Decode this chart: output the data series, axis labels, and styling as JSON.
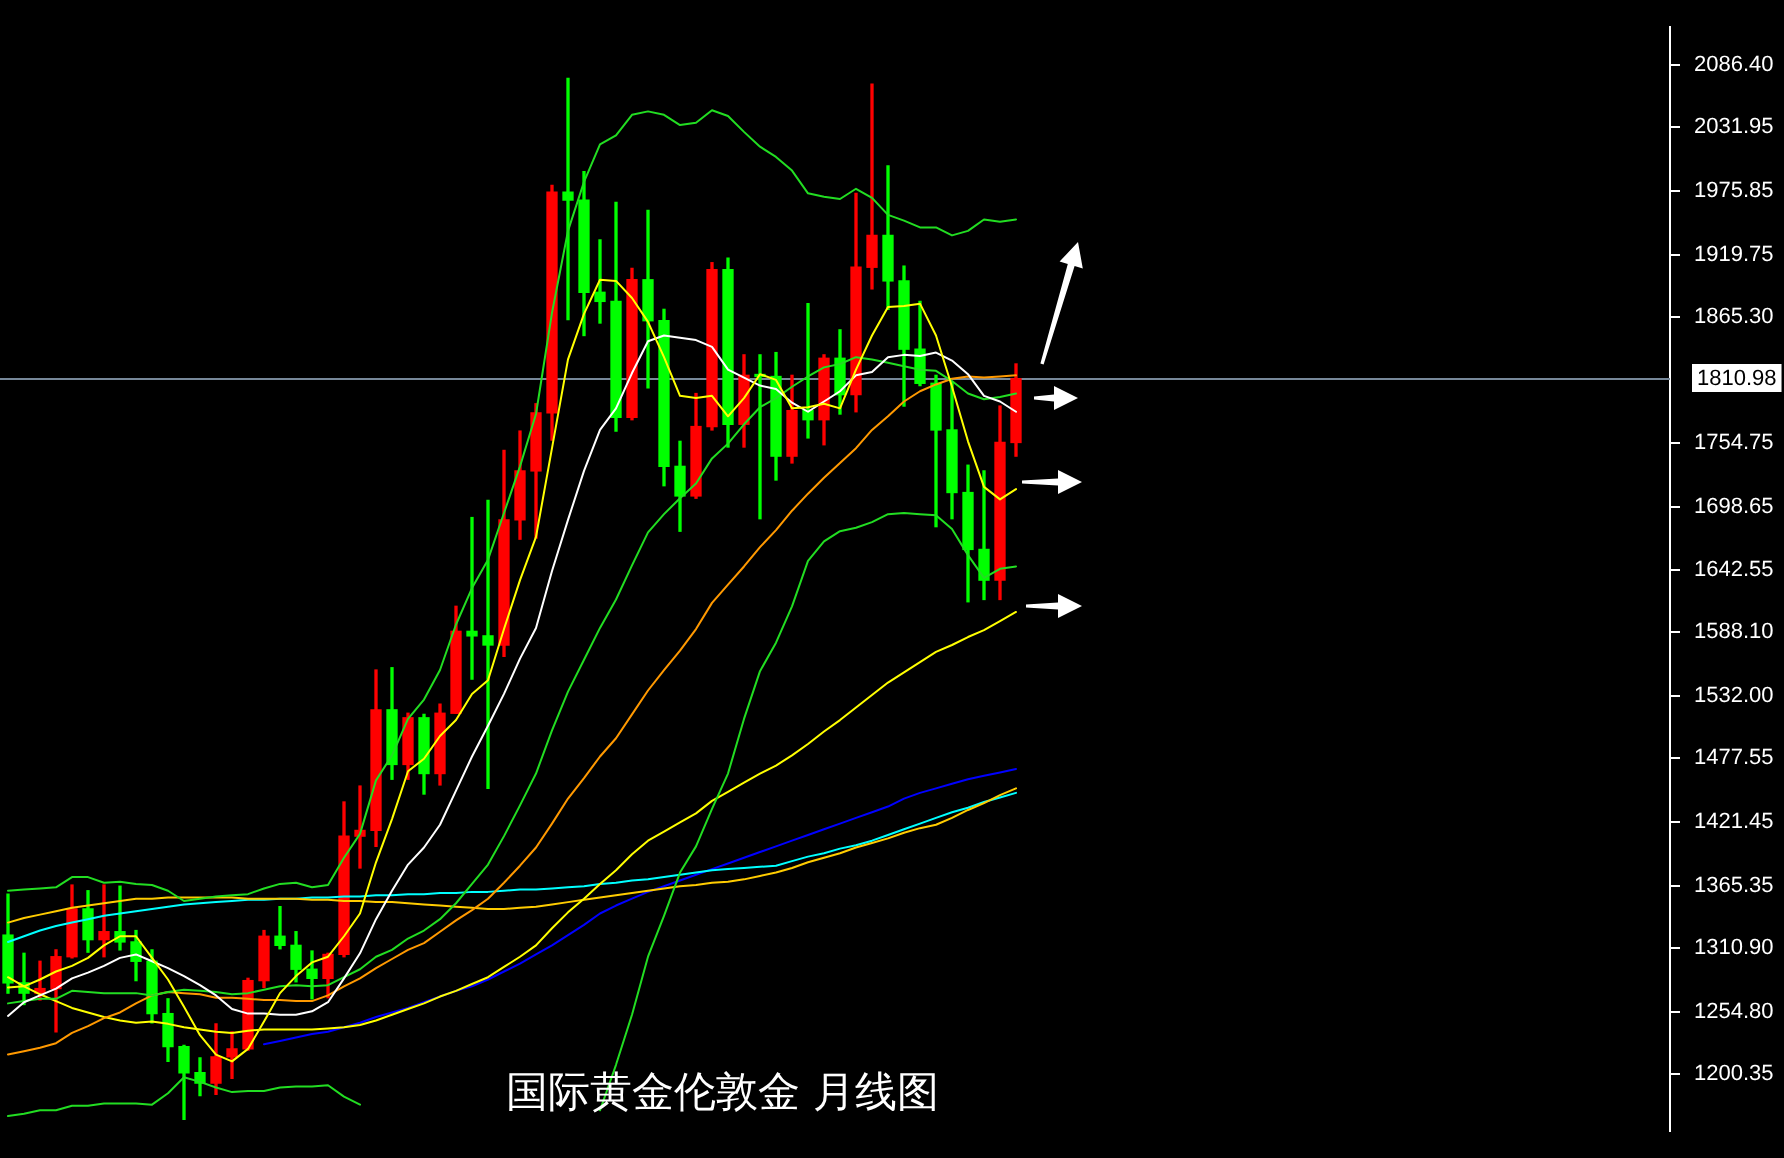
{
  "chart_data": {
    "type": "candlestick",
    "legend": false,
    "grid": false,
    "marker": "none",
    "categories": [
      null,
      null,
      null,
      null,
      null,
      null,
      null,
      null,
      null,
      null,
      null,
      null,
      null,
      null,
      null,
      null,
      null,
      null,
      null,
      null,
      null,
      null,
      null,
      null,
      null,
      null,
      null,
      null,
      null,
      null,
      null,
      null,
      null,
      null,
      null,
      null,
      null,
      null,
      null,
      null,
      null,
      null,
      null,
      null,
      null,
      null,
      null,
      null,
      null,
      null,
      null,
      null,
      null,
      null,
      null,
      null,
      null,
      null,
      null,
      null,
      null,
      null,
      null,
      null
    ],
    "ohlc": [
      [
        1322,
        1358,
        1271,
        1280
      ],
      [
        1280,
        1306,
        1261,
        1271
      ],
      [
        1271,
        1299,
        1265,
        1275
      ],
      [
        1275,
        1309,
        1237,
        1303
      ],
      [
        1303,
        1366,
        1302,
        1345
      ],
      [
        1345,
        1361,
        1307,
        1318
      ],
      [
        1318,
        1366,
        1303,
        1325
      ],
      [
        1325,
        1365,
        1309,
        1316
      ],
      [
        1316,
        1326,
        1282,
        1299
      ],
      [
        1299,
        1309,
        1245,
        1253
      ],
      [
        1253,
        1266,
        1211,
        1224
      ],
      [
        1224,
        1225,
        1160,
        1201
      ],
      [
        1201,
        1214,
        1181,
        1192
      ],
      [
        1192,
        1244,
        1182,
        1215
      ],
      [
        1215,
        1237,
        1196,
        1222
      ],
      [
        1222,
        1284,
        1221,
        1282
      ],
      [
        1282,
        1326,
        1276,
        1321
      ],
      [
        1321,
        1347,
        1310,
        1313
      ],
      [
        1313,
        1325,
        1281,
        1292
      ],
      [
        1292,
        1308,
        1266,
        1284
      ],
      [
        1284,
        1306,
        1267,
        1305
      ],
      [
        1305,
        1439,
        1303,
        1409
      ],
      [
        1409,
        1453,
        1381,
        1414
      ],
      [
        1414,
        1555,
        1400,
        1520
      ],
      [
        1520,
        1557,
        1459,
        1472
      ],
      [
        1472,
        1517,
        1459,
        1513
      ],
      [
        1513,
        1516,
        1446,
        1464
      ],
      [
        1464,
        1525,
        1454,
        1517
      ],
      [
        1517,
        1611,
        1517,
        1589
      ],
      [
        1589,
        1689,
        1547,
        1585
      ],
      [
        1585,
        1704,
        1451,
        1577
      ],
      [
        1577,
        1748,
        1567,
        1687
      ],
      [
        1687,
        1765,
        1670,
        1730
      ],
      [
        1730,
        1789,
        1671,
        1781
      ],
      [
        1781,
        1981,
        1757,
        1975
      ],
      [
        1975,
        2075,
        1863,
        1968
      ],
      [
        1968,
        1993,
        1849,
        1887
      ],
      [
        1887,
        1933,
        1860,
        1879
      ],
      [
        1879,
        1966,
        1765,
        1777
      ],
      [
        1777,
        1908,
        1775,
        1898
      ],
      [
        1898,
        1959,
        1803,
        1862
      ],
      [
        1862,
        1872,
        1717,
        1734
      ],
      [
        1734,
        1756,
        1677,
        1708
      ],
      [
        1708,
        1798,
        1706,
        1769
      ],
      [
        1769,
        1913,
        1766,
        1907
      ],
      [
        1907,
        1917,
        1751,
        1771
      ],
      [
        1771,
        1832,
        1751,
        1814
      ],
      [
        1814,
        1832,
        1688,
        1813
      ],
      [
        1813,
        1834,
        1722,
        1743
      ],
      [
        1743,
        1814,
        1737,
        1783
      ],
      [
        1783,
        1877,
        1759,
        1775
      ],
      [
        1775,
        1832,
        1753,
        1829
      ],
      [
        1829,
        1854,
        1780,
        1797
      ],
      [
        1797,
        1974,
        1782,
        1909
      ],
      [
        1909,
        2070,
        1890,
        1937
      ],
      [
        1937,
        1998,
        1872,
        1897
      ],
      [
        1897,
        1910,
        1787,
        1837
      ],
      [
        1837,
        1879,
        1805,
        1807
      ],
      [
        1807,
        1814,
        1681,
        1766
      ],
      [
        1766,
        1808,
        1688,
        1711
      ],
      [
        1711,
        1735,
        1615,
        1661
      ],
      [
        1661,
        1730,
        1617,
        1634
      ],
      [
        1634,
        1787,
        1617,
        1755
      ],
      [
        1755,
        1824,
        1743,
        1811
      ]
    ],
    "colors": [
      "#00ff00",
      "#00ff00",
      "#ff0000",
      "#ff0000",
      "#ff0000",
      "#00ff00",
      "#ff0000",
      "#00ff00",
      "#00ff00",
      "#00ff00",
      "#00ff00",
      "#00ff00",
      "#00ff00",
      "#ff0000",
      "#ff0000",
      "#ff0000",
      "#ff0000",
      "#00ff00",
      "#00ff00",
      "#00ff00",
      "#ff0000",
      "#ff0000",
      "#ff0000",
      "#ff0000",
      "#00ff00",
      "#ff0000",
      "#00ff00",
      "#ff0000",
      "#ff0000",
      "#00ff00",
      "#00ff00",
      "#ff0000",
      "#ff0000",
      "#ff0000",
      "#ff0000",
      "#00ff00",
      "#00ff00",
      "#00ff00",
      "#00ff00",
      "#ff0000",
      "#00ff00",
      "#00ff00",
      "#00ff00",
      "#ff0000",
      "#ff0000",
      "#00ff00",
      "#ff0000",
      "#00ff00",
      "#00ff00",
      "#ff0000",
      "#00ff00",
      "#ff0000",
      "#00ff00",
      "#ff0000",
      "#ff0000",
      "#00ff00",
      "#00ff00",
      "#00ff00",
      "#00ff00",
      "#00ff00",
      "#00ff00",
      "#00ff00",
      "#ff0000",
      "#ff0000"
    ],
    "series": [
      {
        "type": "line",
        "color": "#ffff00",
        "values": [
          1276,
          1277,
          1283,
          1290,
          1295,
          1302,
          1313,
          1321,
          1321,
          1302,
          1283,
          1259,
          1234,
          1217,
          1211,
          1222,
          1246,
          1271,
          1286,
          1298,
          1303,
          1321,
          1341,
          1386,
          1424,
          1466,
          1477,
          1497,
          1511,
          1534,
          1546,
          1591,
          1634,
          1672,
          1750,
          1828,
          1868,
          1898,
          1897,
          1882,
          1861,
          1830,
          1796,
          1794,
          1796,
          1778,
          1794,
          1815,
          1810,
          1785,
          1786,
          1789,
          1785,
          1819,
          1849,
          1874,
          1875,
          1877,
          1849,
          1804,
          1756,
          1716,
          1705,
          1714
        ]
      },
      {
        "type": "line",
        "color": "#ffffff",
        "values": [
          1251,
          1263,
          1269,
          1275,
          1284,
          1289,
          1295,
          1302,
          1305,
          1299,
          1293,
          1286,
          1278,
          1269,
          1257,
          1253,
          1253,
          1252,
          1252,
          1255,
          1263,
          1284,
          1306,
          1336,
          1361,
          1384,
          1399,
          1419,
          1449,
          1479,
          1506,
          1534,
          1565,
          1592,
          1642,
          1687,
          1730,
          1766,
          1785,
          1816,
          1844,
          1849,
          1847,
          1845,
          1839,
          1819,
          1812,
          1805,
          1802,
          1790,
          1782,
          1791,
          1800,
          1814,
          1817,
          1830,
          1832,
          1831,
          1834,
          1827,
          1815,
          1796,
          1791,
          1782
        ]
      },
      {
        "type": "line",
        "color": "#22dd22",
        "values": [
          1361,
          1362,
          1363,
          1364,
          1373,
          1373,
          1368,
          1369,
          1367,
          1366,
          1361,
          1352,
          1354,
          1356,
          1357,
          1358,
          1363,
          1367,
          1368,
          1364,
          1366,
          1390,
          1411,
          1458,
          1480,
          1512,
          1529,
          1555,
          1595,
          1627,
          1652,
          1693,
          1734,
          1780,
          1869,
          1941,
          1984,
          2017,
          2025,
          2043,
          2046,
          2043,
          2034,
          2036,
          2047,
          2042,
          2028,
          2015,
          2006,
          1994,
          1974,
          1971,
          1969,
          1978,
          1970,
          1955,
          1950,
          1944,
          1944,
          1937,
          1941,
          1951,
          1949,
          1951
        ]
      },
      {
        "type": "line",
        "color": "#22dd22",
        "values": [
          1262,
          1264,
          1266,
          1266,
          1273,
          1272,
          1271,
          1271,
          1271,
          1269,
          1272,
          1274,
          1273,
          1272,
          1270,
          1271,
          1274,
          1277,
          1278,
          1277,
          1278,
          1285,
          1292,
          1303,
          1309,
          1319,
          1326,
          1336,
          1350,
          1367,
          1384,
          1409,
          1436,
          1464,
          1502,
          1536,
          1564,
          1592,
          1617,
          1647,
          1676,
          1692,
          1706,
          1719,
          1741,
          1754,
          1771,
          1786,
          1794,
          1804,
          1813,
          1821,
          1824,
          1830,
          1828,
          1825,
          1822,
          1819,
          1818,
          1809,
          1798,
          1793,
          1795,
          1798
        ]
      },
      {
        "type": "line",
        "color": "#22dd22",
        "values": [
          1163,
          1165,
          1168,
          1168,
          1172,
          1172,
          1174,
          1174,
          1174,
          1173,
          1183,
          1197,
          1193,
          1188,
          1184,
          1185,
          1185,
          1188,
          1189,
          1189,
          1190,
          1180,
          1173,
          null,
          null,
          null,
          null,
          null,
          null,
          null,
          null,
          null,
          null,
          null,
          null,
          null,
          null,
          1168,
          1208,
          1252,
          1303,
          1339,
          1377,
          1400,
          1433,
          1464,
          1512,
          1554,
          1579,
          1611,
          1651,
          1668,
          1677,
          1680,
          1685,
          1692,
          1693,
          1692,
          1691,
          1679,
          1656,
          1636,
          1644,
          1646
        ]
      },
      {
        "type": "line",
        "color": "#ff9900",
        "values": [
          1217,
          1220,
          1223,
          1227,
          1236,
          1242,
          1249,
          1254,
          1262,
          1269,
          1272,
          1271,
          1270,
          1267,
          1267,
          1266,
          1265,
          1265,
          1264,
          1264,
          1269,
          1277,
          1284,
          1293,
          1301,
          1309,
          1315,
          1325,
          1335,
          1344,
          1354,
          1368,
          1383,
          1399,
          1420,
          1442,
          1460,
          1479,
          1495,
          1516,
          1537,
          1555,
          1572,
          1591,
          1614,
          1630,
          1646,
          1663,
          1678,
          1695,
          1710,
          1724,
          1737,
          1750,
          1766,
          1778,
          1791,
          1800,
          1806,
          1811,
          1813,
          1812,
          1813,
          1814
        ]
      },
      {
        "type": "line",
        "color": "#ffff00",
        "values": [
          1285,
          1277,
          1270,
          1264,
          1258,
          1254,
          1250,
          1247,
          1245,
          1246,
          1244,
          1241,
          1239,
          1237,
          1236,
          1238,
          1239,
          1239,
          1239,
          1239,
          1240,
          1241,
          1243,
          1247,
          1252,
          1257,
          1262,
          1268,
          1273,
          1279,
          1285,
          1294,
          1303,
          1313,
          1328,
          1342,
          1354,
          1367,
          1379,
          1393,
          1405,
          1413,
          1421,
          1429,
          1440,
          1448,
          1456,
          1464,
          1471,
          1480,
          1490,
          1501,
          1511,
          1522,
          1533,
          1544,
          1553,
          1562,
          1571,
          1577,
          1584,
          1590,
          1598,
          1606
        ]
      },
      {
        "type": "line",
        "color": "#ffcc00",
        "values": [
          1333,
          1337,
          1340,
          1343,
          1346,
          1348,
          1350,
          1352,
          1354,
          1354,
          1355,
          1355,
          1355,
          1355,
          1355,
          1354,
          1354,
          1354,
          1354,
          1353,
          1353,
          1352,
          1352,
          1351,
          1351,
          1350,
          1349,
          1348,
          1347,
          1346,
          1345,
          1345,
          1346,
          1347,
          1349,
          1351,
          1353,
          1355,
          1357,
          1359,
          1361,
          1363,
          1365,
          1366,
          1368,
          1369,
          1371,
          1374,
          1377,
          1381,
          1386,
          1390,
          1394,
          1399,
          1403,
          1407,
          1412,
          1416,
          1419,
          1425,
          1432,
          1438,
          1445,
          1451
        ]
      },
      {
        "type": "line",
        "color": "#00ffff",
        "values": [
          1316,
          1321,
          1326,
          1330,
          1333,
          1336,
          1339,
          1341,
          1343,
          1345,
          1347,
          1349,
          1350,
          1351,
          1352,
          1353,
          1353,
          1354,
          1354,
          1355,
          1355,
          1356,
          1356,
          1357,
          1357,
          1358,
          1358,
          1359,
          1359,
          1360,
          1360,
          1361,
          1362,
          1362,
          1363,
          1364,
          1365,
          1367,
          1368,
          1370,
          1371,
          1373,
          1375,
          1377,
          1379,
          1380,
          1381,
          1382,
          1383,
          1387,
          1391,
          1394,
          1398,
          1401,
          1405,
          1410,
          1415,
          1420,
          1425,
          1430,
          1434,
          1439,
          1443,
          1447
        ]
      },
      {
        "type": "line",
        "color": "#0000ff",
        "values": [
          null,
          null,
          null,
          null,
          null,
          null,
          null,
          null,
          null,
          null,
          null,
          null,
          null,
          null,
          null,
          null,
          1226,
          1229,
          1232,
          1235,
          1237,
          1241,
          1245,
          1250,
          1254,
          1258,
          1263,
          1268,
          1273,
          1277,
          1283,
          1290,
          1297,
          1305,
          1313,
          1322,
          1331,
          1341,
          1348,
          1354,
          1360,
          1365,
          1370,
          1375,
          1380,
          1385,
          1390,
          1395,
          1400,
          1405,
          1410,
          1415,
          1420,
          1425,
          1430,
          1435,
          1442,
          1447,
          1451,
          1455,
          1459,
          1462,
          1465,
          1468
        ]
      }
    ],
    "ylim": [
      1150,
      2120
    ],
    "yticks": [
      {
        "value": 2086.4,
        "label": "2086.40"
      },
      2031.95,
      1975.85,
      1919.75,
      {
        "value": 1865.3,
        "label": "1865.30"
      },
      1754.75,
      1698.65,
      1642.55,
      {
        "value": 1588.1,
        "label": "1588.10"
      },
      {
        "value": 1532,
        "label": "1532.00"
      },
      1477.55,
      1421.45,
      1365.35,
      {
        "value": 1310.9,
        "label": "1310.90"
      },
      {
        "value": 1254.8,
        "label": "1254.80"
      },
      1200.35
    ],
    "ref_lines": [
      {
        "axis": "y",
        "value": 1810.98,
        "label": "1810.98",
        "color": "#778899"
      }
    ],
    "annotations": [
      "国际黄金伦敦金 月线图"
    ]
  }
}
